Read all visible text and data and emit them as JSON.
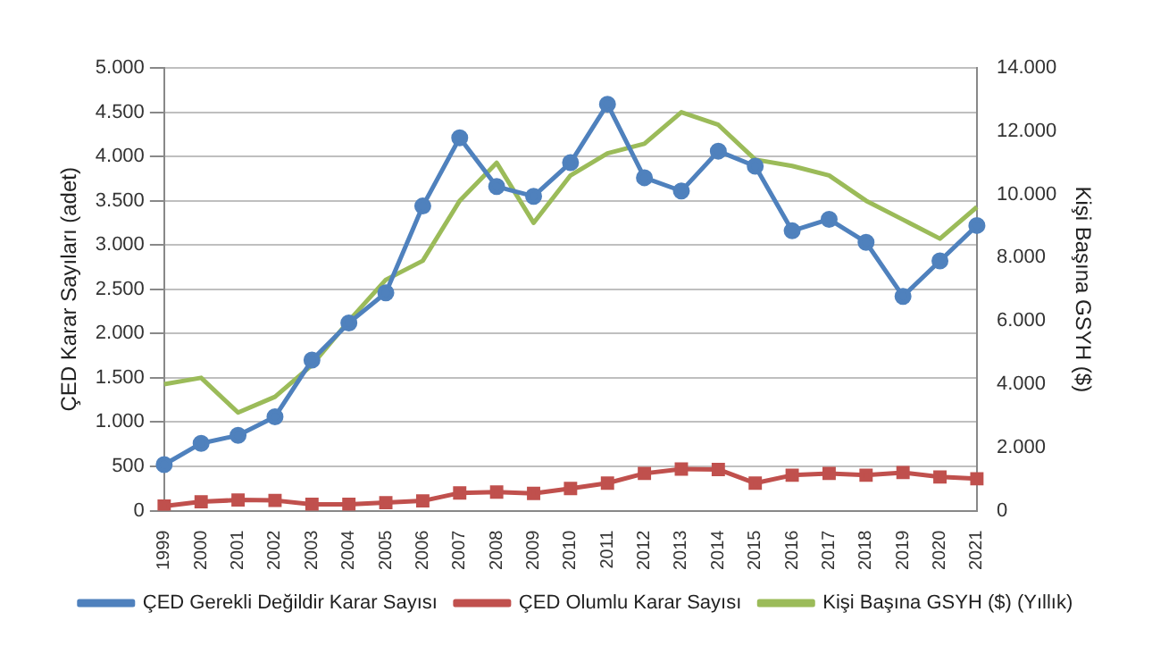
{
  "chart_data": {
    "type": "line",
    "ylabel": "ÇED Karar Sayıları (adet)",
    "y2label": "Kişi Başına GSYH ($)",
    "categories": [
      "1999",
      "2000",
      "2001",
      "2002",
      "2003",
      "2004",
      "2005",
      "2006",
      "2007",
      "2008",
      "2009",
      "2010",
      "2011",
      "2012",
      "2013",
      "2014",
      "2015",
      "2016",
      "2017",
      "2018",
      "2019",
      "2020",
      "2021"
    ],
    "series": [
      {
        "name": "ÇED Gerekli Değildir Karar Sayısı",
        "color": "#4f81bd",
        "marker": "circle",
        "values": [
          520,
          760,
          850,
          1060,
          1700,
          2120,
          2460,
          3440,
          4210,
          3660,
          3550,
          3930,
          4590,
          3760,
          3610,
          4060,
          3890,
          3160,
          3290,
          3030,
          2420,
          2820,
          3220
        ]
      },
      {
        "name": "ÇED Olumlu Karar Sayısı",
        "color": "#c0504d",
        "marker": "square",
        "values": [
          50,
          100,
          120,
          115,
          70,
          70,
          90,
          110,
          200,
          210,
          195,
          250,
          310,
          420,
          470,
          465,
          310,
          400,
          420,
          400,
          430,
          380,
          360
        ]
      },
      {
        "name": "Kişi Başına GSYH ($) (Yıllık)",
        "color": "#9bbb59",
        "marker": "none",
        "axis": "y2",
        "values": [
          4000,
          4200,
          3100,
          3600,
          4600,
          6000,
          7300,
          7900,
          9800,
          11000,
          9100,
          10600,
          11300,
          11600,
          12600,
          12200,
          11100,
          10900,
          10600,
          9800,
          9200,
          8600,
          9600
        ]
      }
    ],
    "ylim": [
      0,
      5000
    ],
    "yticks": [
      {
        "value": 0,
        "label": "0"
      },
      {
        "value": 500,
        "label": "500"
      },
      {
        "value": 1000,
        "label": "1.000"
      },
      {
        "value": 1500,
        "label": "1.500"
      },
      {
        "value": 2000,
        "label": "2.000"
      },
      {
        "value": 2500,
        "label": "2.500"
      },
      {
        "value": 3000,
        "label": "3.000"
      },
      {
        "value": 3500,
        "label": "3.500"
      },
      {
        "value": 4000,
        "label": "4.000"
      },
      {
        "value": 4500,
        "label": "4.500"
      },
      {
        "value": 5000,
        "label": "5.000"
      }
    ],
    "y2lim": [
      0,
      14000
    ],
    "y2ticks": [
      {
        "value": 0,
        "label": "0"
      },
      {
        "value": 2000,
        "label": "2.000"
      },
      {
        "value": 4000,
        "label": "4.000"
      },
      {
        "value": 6000,
        "label": "6.000"
      },
      {
        "value": 8000,
        "label": "8.000"
      },
      {
        "value": 10000,
        "label": "10.000"
      },
      {
        "value": 12000,
        "label": "12.000"
      },
      {
        "value": 14000,
        "label": "14.000"
      }
    ],
    "grid": "y",
    "legend": "bottom"
  }
}
